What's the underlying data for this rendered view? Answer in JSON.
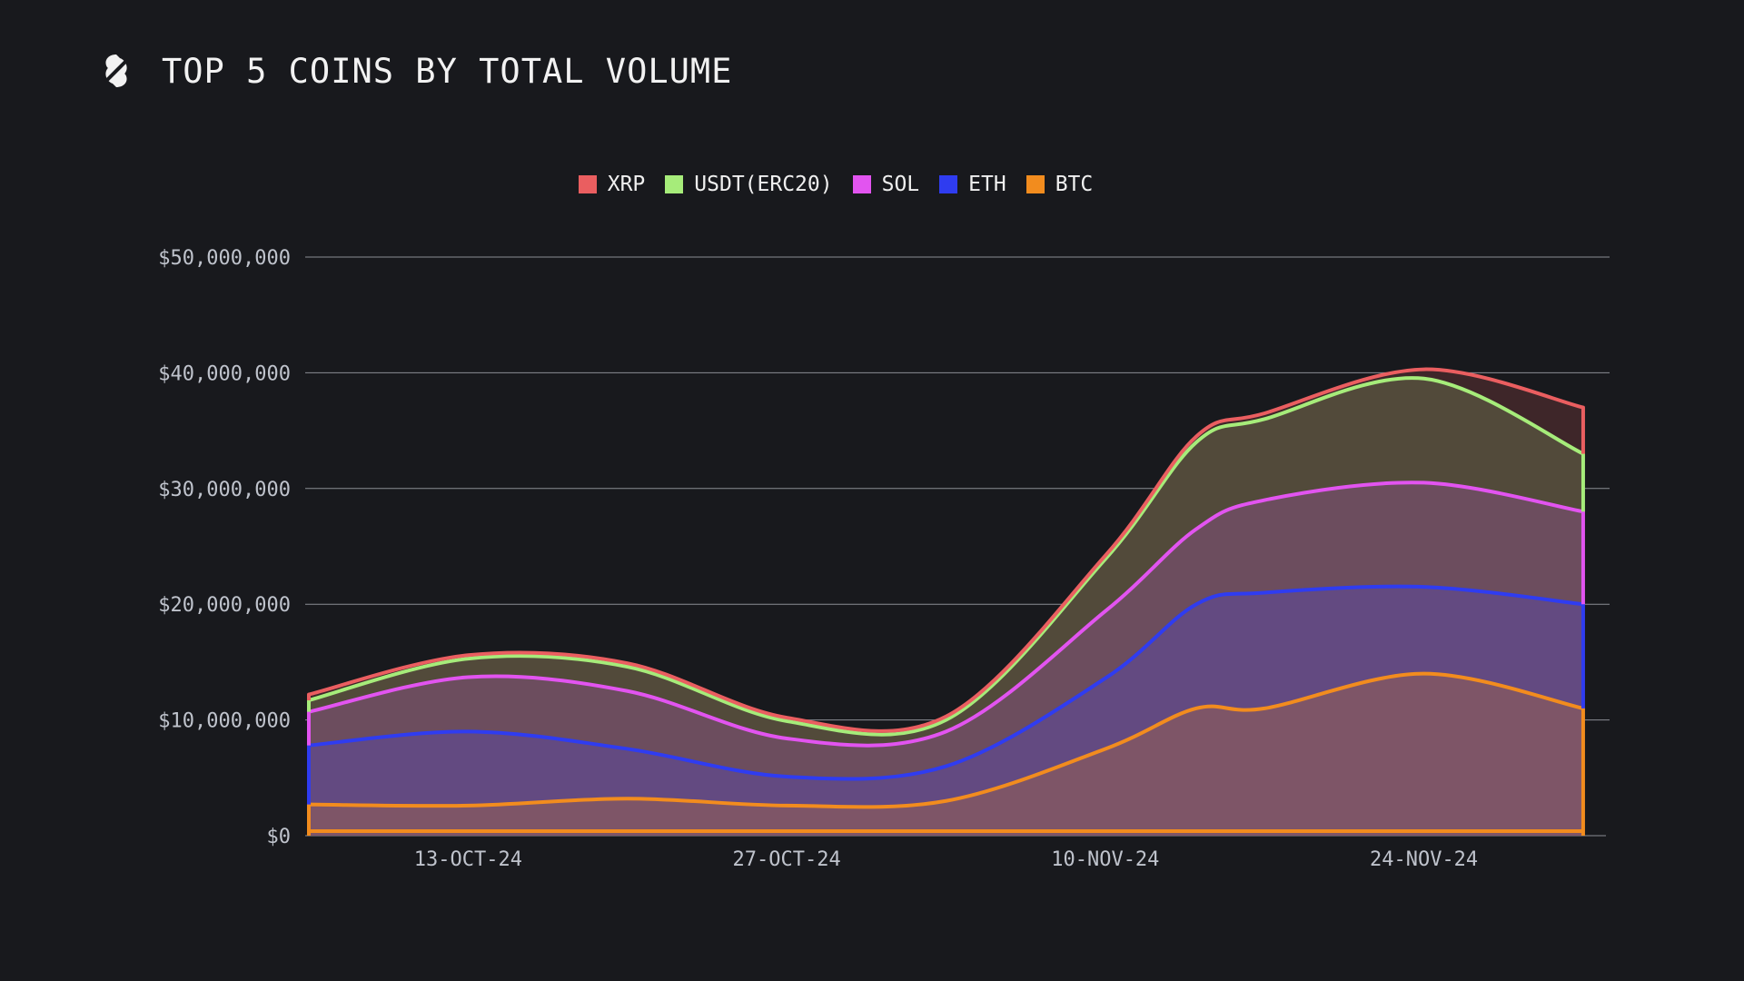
{
  "title": "TOP 5 COINS BY TOTAL VOLUME",
  "icons": {
    "logo": "brand-s-logo-icon"
  },
  "chart_data": {
    "type": "area",
    "stacked": true,
    "x": [
      "2024-10-06",
      "2024-10-13",
      "2024-10-20",
      "2024-10-27",
      "2024-11-03",
      "2024-11-10",
      "2024-11-17",
      "2024-11-24",
      "2024-12-01"
    ],
    "xticks": [
      "13-OCT-24",
      "27-OCT-24",
      "10-NOV-24",
      "24-NOV-24"
    ],
    "xtick_dates": [
      "2024-10-13",
      "2024-10-27",
      "2024-11-10",
      "2024-11-24"
    ],
    "xlim": [
      "2024-10-06",
      "2024-12-02"
    ],
    "ylim": [
      0,
      50000000
    ],
    "yticks": [
      0,
      10000000,
      20000000,
      30000000,
      40000000,
      50000000
    ],
    "ytick_labels": [
      "$0",
      "$10,000,000",
      "$20,000,000",
      "$30,000,000",
      "$40,000,000",
      "$50,000,000"
    ],
    "grid": true,
    "legend_position": "top-center",
    "series": [
      {
        "name": "BTC",
        "color": "#f28c1e",
        "points": [
          [
            "2024-10-06",
            2700000
          ],
          [
            "2024-10-13",
            2600000
          ],
          [
            "2024-10-20",
            3200000
          ],
          [
            "2024-10-27",
            2600000
          ],
          [
            "2024-11-03",
            3000000
          ],
          [
            "2024-11-10",
            7500000
          ],
          [
            "2024-11-14",
            11000000
          ],
          [
            "2024-11-17",
            11000000
          ],
          [
            "2024-11-24",
            14000000
          ],
          [
            "2024-12-01",
            11000000
          ]
        ]
      },
      {
        "name": "ETH",
        "color": "#2f3cf0",
        "points": [
          [
            "2024-10-06",
            5100000
          ],
          [
            "2024-10-13",
            6400000
          ],
          [
            "2024-10-20",
            4300000
          ],
          [
            "2024-10-27",
            2500000
          ],
          [
            "2024-11-03",
            3000000
          ],
          [
            "2024-11-10",
            6100000
          ],
          [
            "2024-11-14",
            9000000
          ],
          [
            "2024-11-17",
            10000000
          ],
          [
            "2024-11-24",
            7500000
          ],
          [
            "2024-12-01",
            9000000
          ]
        ]
      },
      {
        "name": "SOL",
        "color": "#e254f0",
        "points": [
          [
            "2024-10-06",
            2900000
          ],
          [
            "2024-10-13",
            4700000
          ],
          [
            "2024-10-20",
            5000000
          ],
          [
            "2024-10-27",
            3300000
          ],
          [
            "2024-11-03",
            3000000
          ],
          [
            "2024-11-10",
            5800000
          ],
          [
            "2024-11-14",
            6500000
          ],
          [
            "2024-11-17",
            8000000
          ],
          [
            "2024-11-24",
            9000000
          ],
          [
            "2024-12-01",
            8000000
          ]
        ]
      },
      {
        "name": "USDT(ERC20)",
        "color": "#a6ec7a",
        "points": [
          [
            "2024-10-06",
            1000000
          ],
          [
            "2024-10-13",
            1600000
          ],
          [
            "2024-10-20",
            2100000
          ],
          [
            "2024-10-27",
            1500000
          ],
          [
            "2024-11-03",
            1000000
          ],
          [
            "2024-11-10",
            4500000
          ],
          [
            "2024-11-14",
            7500000
          ],
          [
            "2024-11-17",
            7000000
          ],
          [
            "2024-11-24",
            9000000
          ],
          [
            "2024-12-01",
            5000000
          ]
        ]
      },
      {
        "name": "XRP",
        "color": "#ea5e60",
        "points": [
          [
            "2024-10-06",
            500000
          ],
          [
            "2024-10-13",
            300000
          ],
          [
            "2024-10-20",
            300000
          ],
          [
            "2024-10-27",
            300000
          ],
          [
            "2024-11-03",
            300000
          ],
          [
            "2024-11-10",
            300000
          ],
          [
            "2024-11-14",
            500000
          ],
          [
            "2024-11-17",
            500000
          ],
          [
            "2024-11-24",
            800000
          ],
          [
            "2024-12-01",
            4000000
          ]
        ]
      }
    ],
    "legend_order": [
      "XRP",
      "USDT(ERC20)",
      "SOL",
      "ETH",
      "BTC"
    ]
  }
}
